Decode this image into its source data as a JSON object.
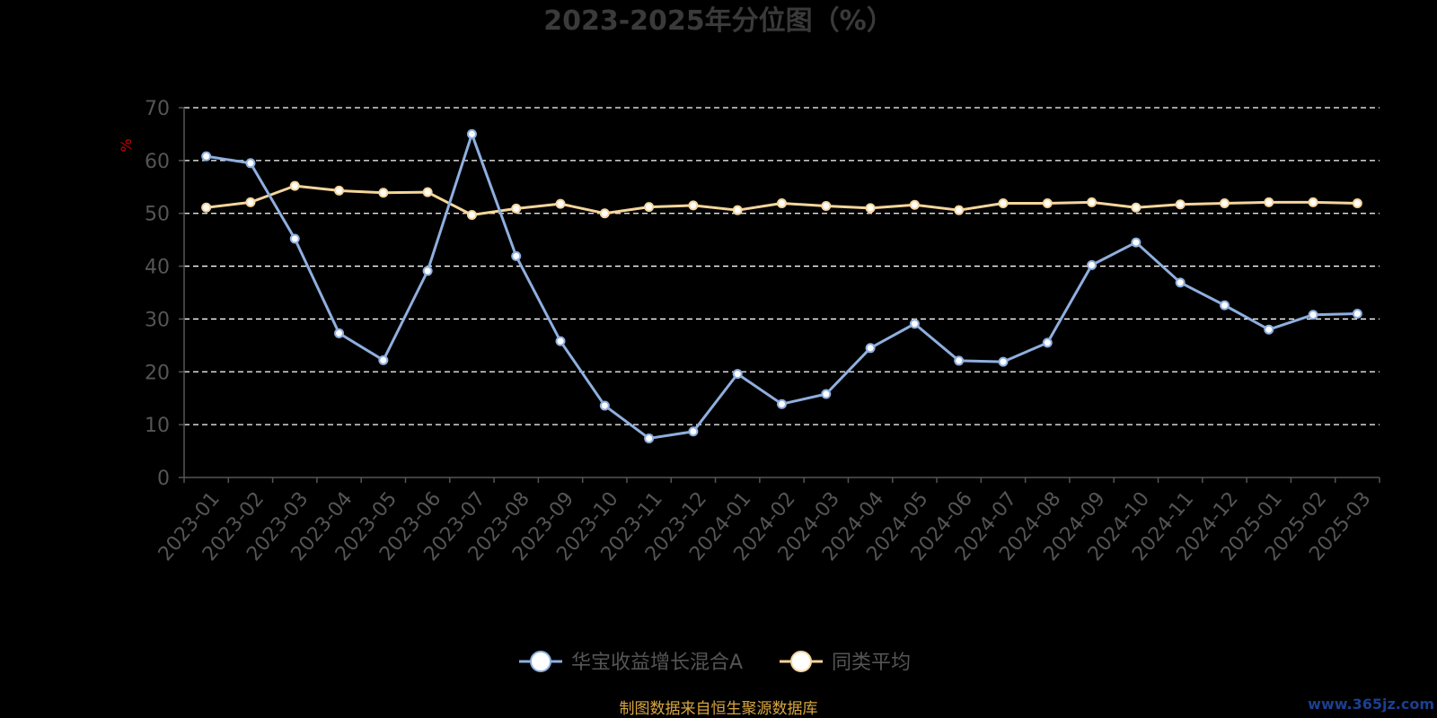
{
  "chart_data": {
    "type": "line",
    "title": "2023-2025年分位图（%）",
    "ylabel": "%",
    "xlabel": "",
    "ylim": [
      0,
      70
    ],
    "yticks": [
      0,
      10,
      20,
      30,
      40,
      50,
      60,
      70
    ],
    "grid": true,
    "legend_position": "bottom-center",
    "categories": [
      "2023-01",
      "2023-02",
      "2023-03",
      "2023-04",
      "2023-05",
      "2023-06",
      "2023-07",
      "2023-08",
      "2023-09",
      "2023-10",
      "2023-11",
      "2023-12",
      "2024-01",
      "2024-02",
      "2024-03",
      "2024-04",
      "2024-05",
      "2024-06",
      "2024-07",
      "2024-08",
      "2024-09",
      "2024-10",
      "2024-11",
      "2024-12",
      "2025-01",
      "2025-02",
      "2025-03"
    ],
    "series": [
      {
        "name": "华宝收益增长混合A",
        "color": "#8eafdf",
        "values": [
          60.8,
          59.5,
          45.2,
          27.3,
          22.2,
          39.1,
          65.0,
          41.9,
          25.8,
          13.6,
          7.4,
          8.7,
          19.6,
          13.9,
          15.8,
          24.5,
          29.1,
          22.1,
          21.9,
          25.5,
          40.2,
          44.5,
          36.9,
          32.6,
          28.0,
          30.8,
          31.0
        ]
      },
      {
        "name": "同类平均",
        "color": "#f5d59b",
        "values": [
          51.1,
          52.1,
          55.2,
          54.3,
          53.9,
          54.0,
          49.7,
          50.9,
          51.8,
          50.0,
          51.2,
          51.5,
          50.6,
          51.9,
          51.4,
          51.0,
          51.6,
          50.6,
          51.9,
          51.9,
          52.1,
          51.1,
          51.7,
          51.9,
          52.1,
          52.1,
          51.9
        ]
      }
    ]
  },
  "footer": {
    "source": "制图数据来自恒生聚源数据库",
    "watermark": "www.365jz.com"
  }
}
